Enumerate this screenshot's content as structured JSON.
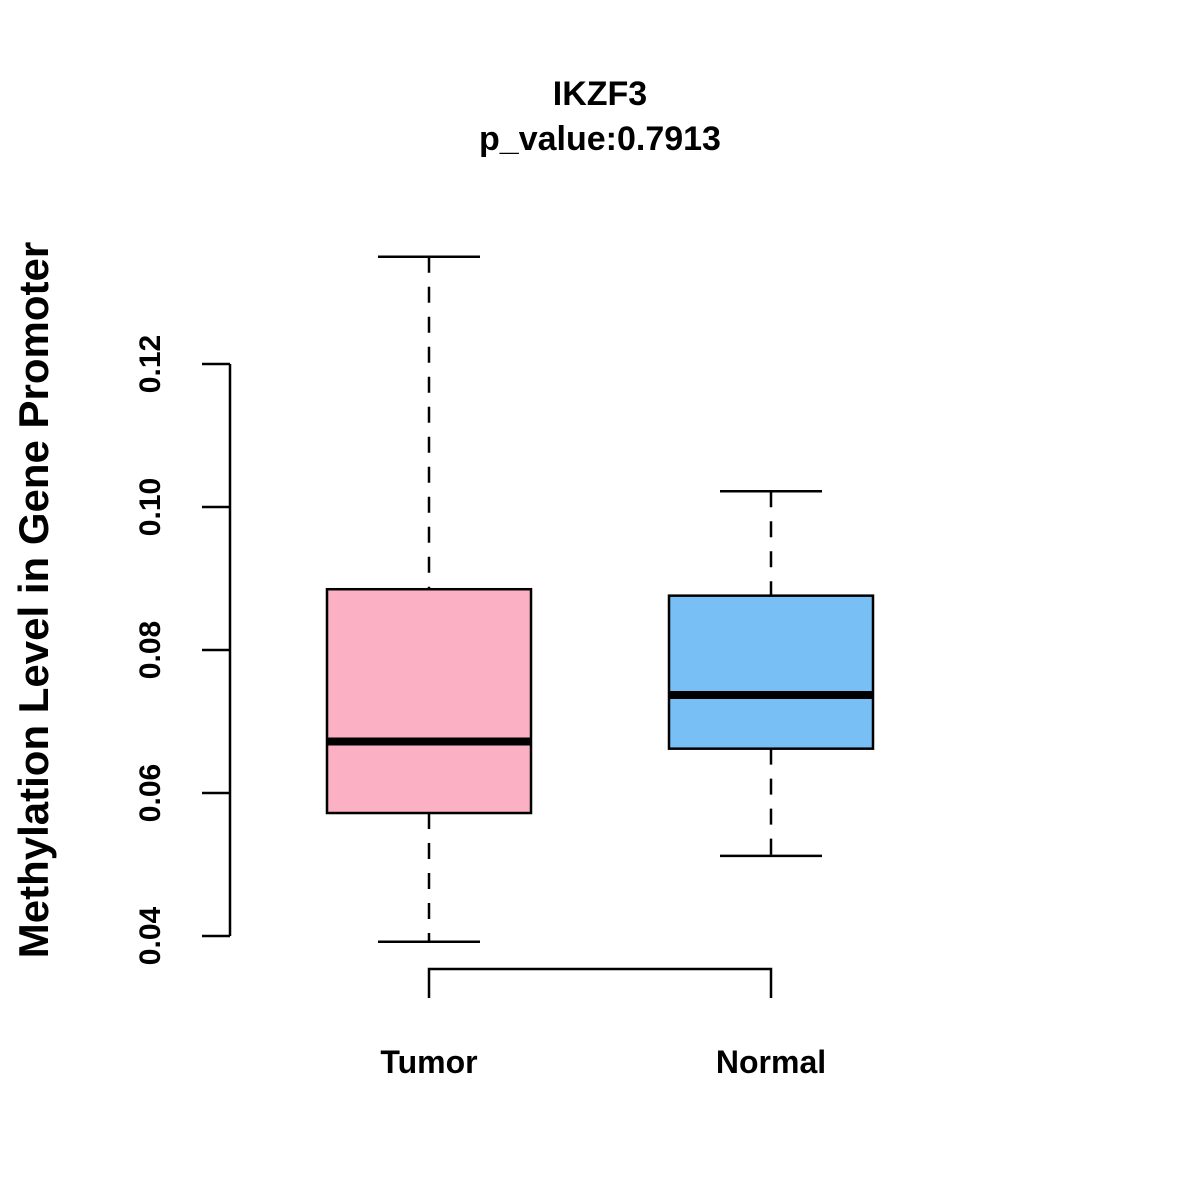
{
  "chart_data": {
    "type": "boxplot",
    "title": "IKZF3",
    "subtitle": "p_value:0.7913",
    "ylabel": "Methylation Level in Gene Promoter",
    "xlabel": "",
    "ylim": [
      0.04,
      0.12
    ],
    "yticks": [
      0.04,
      0.06,
      0.08,
      0.1,
      0.12
    ],
    "ytick_labels": [
      "0.04",
      "0.06",
      "0.08",
      "0.10",
      "0.12"
    ],
    "groups": [
      {
        "name": "Tumor",
        "color": "#FBB1C3",
        "whisker_low": 0.0392,
        "q1": 0.0572,
        "median": 0.0672,
        "q3": 0.0885,
        "whisker_high": 0.135
      },
      {
        "name": "Normal",
        "color": "#78BFF5",
        "whisker_low": 0.0512,
        "q1": 0.0662,
        "median": 0.0737,
        "q3": 0.0876,
        "whisker_high": 0.1022
      }
    ],
    "comparison_bracket": {
      "from": "Tumor",
      "to": "Normal"
    }
  }
}
